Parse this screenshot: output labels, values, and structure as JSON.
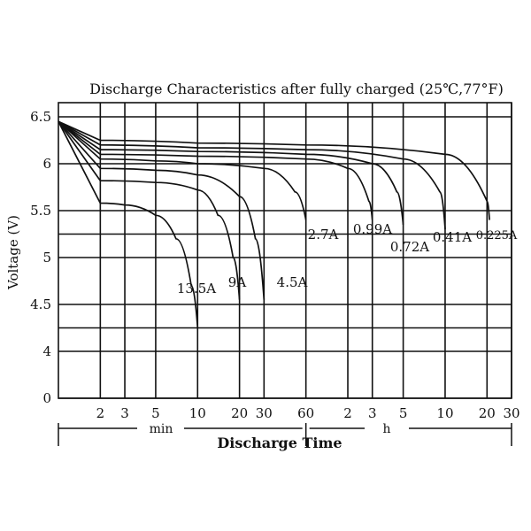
{
  "chart_data": {
    "type": "line",
    "title": "Discharge Characteristics after fully charged (25℃,77°F)",
    "ylabel": "Voltage (V)",
    "xlabel": "Discharge Time",
    "ylim": [
      0,
      6.5
    ],
    "x_scale": "log",
    "grid": true,
    "y_ticks": [
      "0",
      "4",
      "4.5",
      "5",
      "5.5",
      "6",
      "6.5"
    ],
    "y_tick_values": [
      0,
      4.0,
      4.5,
      5.0,
      5.5,
      6.0,
      6.5
    ],
    "x_ticks": [
      {
        "label": "2",
        "minutes": 2
      },
      {
        "label": "3",
        "minutes": 3
      },
      {
        "label": "5",
        "minutes": 5
      },
      {
        "label": "10",
        "minutes": 10
      },
      {
        "label": "20",
        "minutes": 20
      },
      {
        "label": "30",
        "minutes": 30
      },
      {
        "label": "60",
        "minutes": 60
      },
      {
        "label": "2",
        "minutes": 120
      },
      {
        "label": "3",
        "minutes": 180
      },
      {
        "label": "5",
        "minutes": 300
      },
      {
        "label": "10",
        "minutes": 600
      },
      {
        "label": "20",
        "minutes": 1200
      },
      {
        "label": "30",
        "minutes": 1800
      }
    ],
    "x_units": [
      {
        "label": "min",
        "from_minutes": 1,
        "to_minutes": 60
      },
      {
        "label": "h",
        "from_minutes": 60,
        "to_minutes": 1800
      }
    ],
    "series": [
      {
        "name": "13.5A",
        "x": [
          1,
          2,
          3,
          5,
          7,
          9,
          10
        ],
        "y": [
          6.45,
          5.58,
          5.56,
          5.45,
          5.2,
          4.7,
          4.25
        ]
      },
      {
        "name": "9A",
        "x": [
          1,
          2,
          5,
          10,
          14,
          18,
          20
        ],
        "y": [
          6.45,
          5.82,
          5.8,
          5.72,
          5.45,
          5.0,
          4.55
        ]
      },
      {
        "name": "4.5A",
        "x": [
          1,
          2,
          5,
          10,
          20,
          26,
          30
        ],
        "y": [
          6.45,
          5.95,
          5.93,
          5.88,
          5.65,
          5.2,
          4.55
        ]
      },
      {
        "name": "2.7A",
        "x": [
          1,
          2,
          5,
          10,
          30,
          50,
          60
        ],
        "y": [
          6.45,
          6.05,
          6.03,
          6.0,
          5.95,
          5.7,
          5.4
        ]
      },
      {
        "name": "0.99A",
        "x": [
          1,
          2,
          10,
          60,
          120,
          170,
          180
        ],
        "y": [
          6.45,
          6.1,
          6.08,
          6.05,
          5.95,
          5.6,
          5.4
        ]
      },
      {
        "name": "0.72A",
        "x": [
          1,
          2,
          10,
          60,
          180,
          270,
          300
        ],
        "y": [
          6.45,
          6.15,
          6.13,
          6.1,
          6.0,
          5.7,
          5.35
        ]
      },
      {
        "name": "0.41A",
        "x": [
          1,
          2,
          10,
          60,
          300,
          550,
          600
        ],
        "y": [
          6.45,
          6.2,
          6.17,
          6.15,
          6.05,
          5.7,
          5.3
        ]
      },
      {
        "name": "0.225A",
        "x": [
          1,
          2,
          10,
          60,
          600,
          1200,
          1250
        ],
        "y": [
          6.45,
          6.25,
          6.22,
          6.2,
          6.1,
          5.6,
          5.4
        ]
      }
    ]
  }
}
